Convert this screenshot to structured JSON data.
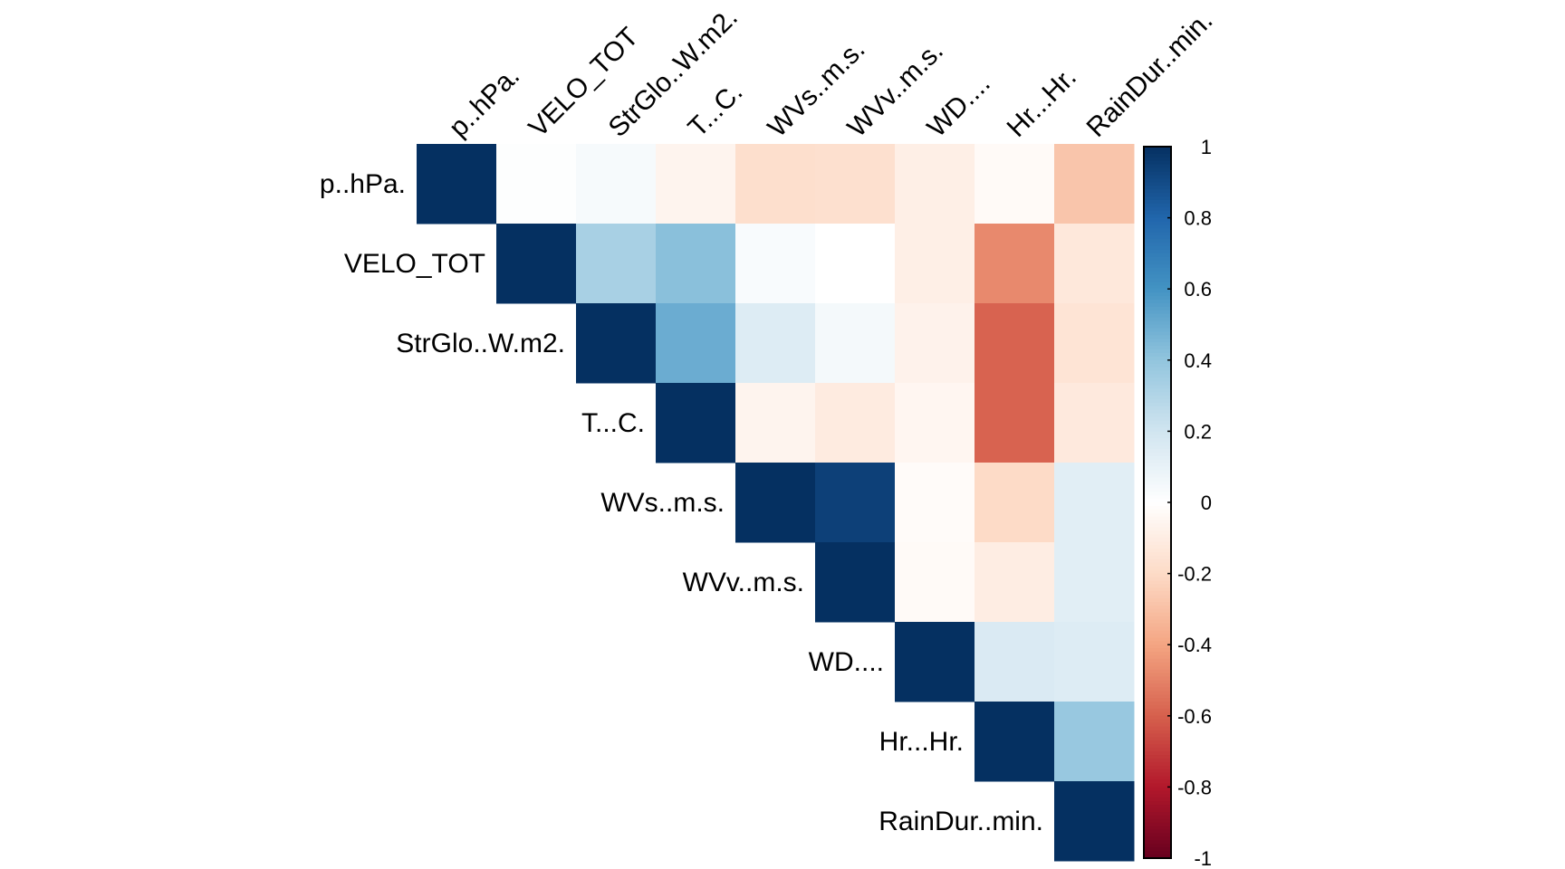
{
  "chart_data": {
    "type": "heatmap",
    "title": "",
    "layout": "upper-triangle correlation matrix",
    "variables": [
      "p..hPa.",
      "VELO_TOT",
      "StrGlo..W.m2.",
      "T...C.",
      "WVs..m.s.",
      "WVv..m.s.",
      "WD....",
      "Hr...Hr.",
      "RainDur..min."
    ],
    "matrix": [
      [
        1,
        0.01,
        0.04,
        -0.06,
        -0.18,
        -0.17,
        -0.09,
        -0.03,
        -0.28
      ],
      [
        null,
        1,
        0.33,
        0.42,
        0.03,
        0.0,
        -0.09,
        -0.48,
        -0.13
      ],
      [
        null,
        null,
        1,
        0.5,
        0.15,
        0.05,
        -0.07,
        -0.59,
        -0.15
      ],
      [
        null,
        null,
        null,
        1,
        -0.06,
        -0.11,
        -0.05,
        -0.59,
        -0.12
      ],
      [
        null,
        null,
        null,
        null,
        1,
        0.94,
        -0.02,
        -0.2,
        0.13
      ],
      [
        null,
        null,
        null,
        null,
        null,
        1,
        -0.03,
        -0.1,
        0.13
      ],
      [
        null,
        null,
        null,
        null,
        null,
        null,
        1,
        0.16,
        0.15
      ],
      [
        null,
        null,
        null,
        null,
        null,
        null,
        null,
        1,
        0.38
      ],
      [
        null,
        null,
        null,
        null,
        null,
        null,
        null,
        null,
        1
      ]
    ],
    "colorbar": {
      "range": [
        -1,
        1
      ],
      "tick_labels": [
        "1",
        "0.8",
        "0.6",
        "0.4",
        "0.2",
        "0",
        "-0.2",
        "-0.4",
        "-0.6",
        "-0.8",
        "-1"
      ],
      "palette": [
        "#67001F",
        "#B2182B",
        "#D6604D",
        "#F4A582",
        "#FDDBC7",
        "#FFFFFF",
        "#D1E5F0",
        "#92C5DE",
        "#4393C3",
        "#2166AC",
        "#053061"
      ]
    }
  }
}
